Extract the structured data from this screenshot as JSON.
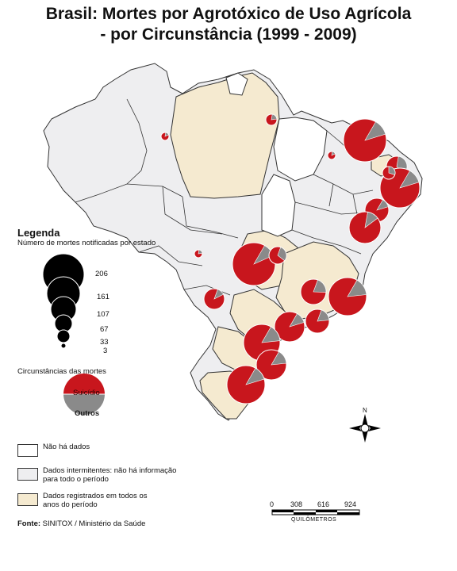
{
  "title_line1": "Brasil: Mortes por Agrotóxico de Uso Agrícola",
  "title_line2": "- por Circunstância (1999 - 2009)",
  "legend": {
    "heading": "Legenda",
    "size_subtitle": "Número de mortes notificadas por estado",
    "size_values": [
      "206",
      "161",
      "107",
      "67",
      "33",
      "3"
    ],
    "circumstances_title": "Circunstâncias das mortes",
    "suicide_label": "Suicídio",
    "others_label": "Outros",
    "categories": [
      {
        "label": "Não há dados",
        "color": "#ffffff"
      },
      {
        "label": "Dados intermitentes: não há informação para todo o período",
        "color": "#eeeef0"
      },
      {
        "label": "Dados registrados em todos os anos do período",
        "color": "#f5ead0"
      }
    ]
  },
  "colors": {
    "suicide": "#c8161d",
    "others": "#8a8a8a",
    "intermittent": "#eeeef0",
    "registered": "#f5ead0",
    "no_data": "#ffffff"
  },
  "scale": {
    "ticks": [
      "0",
      "308",
      "616",
      "924"
    ],
    "unit": "QUILÔMETROS"
  },
  "compass_label": "N",
  "source": {
    "label": "Fonte:",
    "text": "SINITOX / Ministério da Saúde"
  }
}
